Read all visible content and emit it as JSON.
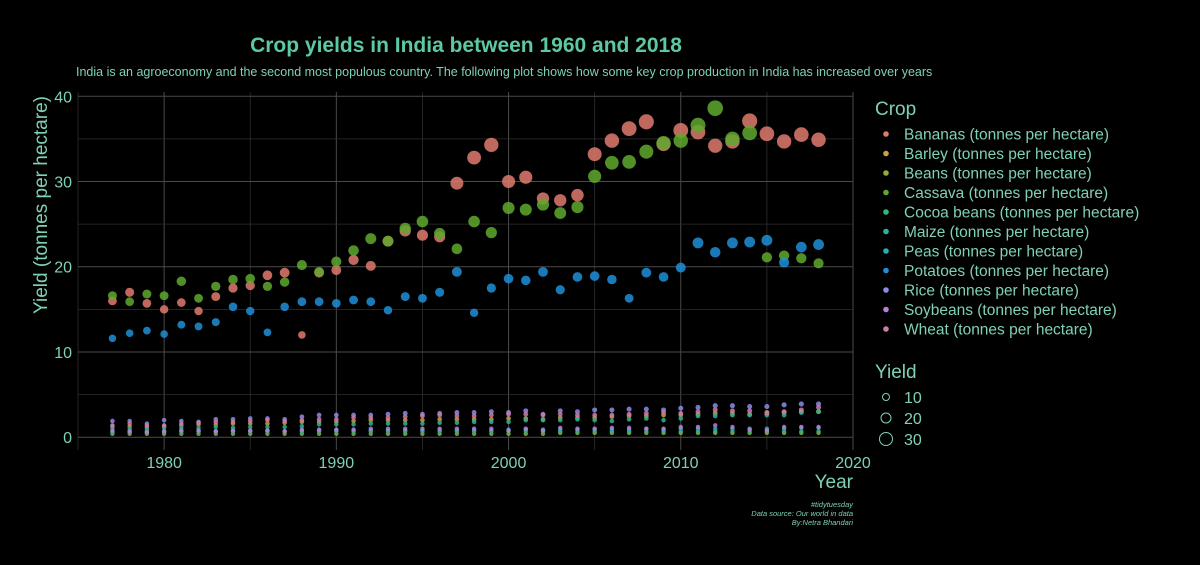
{
  "chart_data": {
    "type": "scatter",
    "title": "Crop yields in India between 1960 and 2018",
    "subtitle": "India is an agroeconomy and the second most populous country. The following plot shows how some key crop production in India has increased over years",
    "xlabel": "Year",
    "ylabel": "Yield (tonnes per hectare)",
    "xlim": [
      1975,
      2020
    ],
    "ylim": [
      -1.5,
      40.5
    ],
    "xticks": [
      1980,
      1990,
      2000,
      2010,
      2020
    ],
    "yticks": [
      0,
      10,
      20,
      30,
      40
    ],
    "grid": true,
    "legend": {
      "crop_title": "Crop",
      "size_title": "Yield",
      "size_values": [
        10,
        20,
        30
      ],
      "placement": "right"
    },
    "caption": [
      "#tidytuesday",
      "Data source: Our world in data",
      "By:Netra Bhandari"
    ],
    "series": [
      {
        "name": "Bananas (tonnes per hectare)",
        "color": "#E07A6E",
        "x": [
          1977,
          1978,
          1979,
          1980,
          1981,
          1982,
          1983,
          1984,
          1985,
          1986,
          1987,
          1988,
          1989,
          1990,
          1991,
          1992,
          1993,
          1994,
          1995,
          1996,
          1997,
          1998,
          1999,
          2000,
          2001,
          2002,
          2003,
          2004,
          2005,
          2006,
          2007,
          2008,
          2009,
          2010,
          2011,
          2012,
          2013,
          2014,
          2015,
          2016,
          2017,
          2018
        ],
        "y": [
          16.0,
          17.0,
          15.7,
          15.0,
          15.8,
          14.8,
          16.5,
          17.5,
          17.8,
          19.0,
          19.3,
          12.0,
          19.3,
          19.6,
          20.8,
          20.1,
          23.0,
          24.2,
          23.7,
          23.5,
          29.8,
          32.8,
          34.3,
          30.0,
          30.5,
          28.0,
          27.8,
          28.4,
          33.2,
          34.8,
          36.2,
          37.0,
          34.4,
          36.0,
          35.8,
          34.2,
          34.7,
          37.1,
          35.6,
          34.7,
          35.5,
          34.9
        ]
      },
      {
        "name": "Barley (tonnes per hectare)",
        "color": "#C8A23C",
        "x": [
          1977,
          1978,
          1979,
          1980,
          1981,
          1982,
          1983,
          1984,
          1985,
          1986,
          1987,
          1988,
          1989,
          1990,
          1991,
          1992,
          1993,
          1994,
          1995,
          1996,
          1997,
          1998,
          1999,
          2000,
          2001,
          2002,
          2003,
          2004,
          2005,
          2006,
          2007,
          2008,
          2009,
          2010,
          2011,
          2012,
          2013,
          2014,
          2015,
          2016,
          2017,
          2018
        ],
        "y": [
          1.3,
          1.3,
          1.2,
          1.3,
          1.4,
          1.5,
          1.5,
          1.6,
          1.6,
          1.6,
          1.7,
          1.8,
          1.8,
          1.8,
          1.9,
          2.0,
          2.0,
          2.0,
          2.0,
          2.1,
          2.1,
          2.1,
          2.1,
          2.2,
          2.2,
          2.1,
          2.3,
          2.3,
          2.3,
          2.4,
          2.5,
          2.5,
          2.6,
          2.6,
          2.7,
          2.8,
          2.8,
          2.7,
          2.9,
          2.9,
          3.0,
          3.0
        ]
      },
      {
        "name": "Beans (tonnes per hectare)",
        "color": "#9AA83A",
        "x": [
          1977,
          1978,
          1979,
          1980,
          1981,
          1982,
          1983,
          1984,
          1985,
          1986,
          1987,
          1988,
          1989,
          1990,
          1991,
          1992,
          1993,
          1994,
          1995,
          1996,
          1997,
          1998,
          1999,
          2000,
          2001,
          2002,
          2003,
          2004,
          2005,
          2006,
          2007,
          2008,
          2009,
          2010,
          2011,
          2012,
          2013,
          2014,
          2015,
          2016,
          2017,
          2018
        ],
        "y": [
          0.4,
          0.4,
          0.4,
          0.4,
          0.4,
          0.4,
          0.4,
          0.4,
          0.4,
          0.4,
          0.4,
          0.4,
          0.4,
          0.4,
          0.4,
          0.4,
          0.4,
          0.4,
          0.4,
          0.4,
          0.4,
          0.4,
          0.4,
          0.4,
          0.4,
          0.4,
          0.5,
          0.5,
          0.5,
          0.5,
          0.5,
          0.5,
          0.5,
          0.5,
          0.5,
          0.5,
          0.5,
          0.5,
          0.5,
          0.5,
          0.5,
          0.5
        ]
      },
      {
        "name": "Cassava (tonnes per hectare)",
        "color": "#5FA82E",
        "x": [
          1977,
          1978,
          1979,
          1980,
          1981,
          1982,
          1983,
          1984,
          1985,
          1986,
          1987,
          1988,
          1989,
          1990,
          1991,
          1992,
          1993,
          1994,
          1995,
          1996,
          1997,
          1998,
          1999,
          2000,
          2001,
          2002,
          2003,
          2004,
          2005,
          2006,
          2007,
          2008,
          2009,
          2010,
          2011,
          2012,
          2013,
          2014,
          2015,
          2016,
          2017,
          2018
        ],
        "y": [
          16.6,
          15.9,
          16.8,
          16.6,
          18.3,
          16.3,
          17.7,
          18.5,
          18.6,
          17.7,
          18.2,
          20.2,
          19.4,
          20.6,
          21.9,
          23.3,
          23.0,
          24.5,
          25.3,
          23.9,
          22.1,
          25.3,
          24.0,
          26.9,
          26.7,
          27.3,
          26.3,
          27.0,
          30.6,
          32.2,
          32.3,
          33.5,
          34.5,
          34.8,
          36.6,
          38.6,
          35.0,
          35.7,
          21.1,
          21.3,
          21.0,
          20.4
        ]
      },
      {
        "name": "Cocoa beans (tonnes per hectare)",
        "color": "#2EB87C",
        "x": [
          1977,
          1978,
          1979,
          1980,
          1981,
          1982,
          1983,
          1984,
          1985,
          1986,
          1987,
          1988,
          1989,
          1990,
          1991,
          1992,
          1993,
          1994,
          1995,
          1996,
          1997,
          1998,
          1999,
          2000,
          2001,
          2002,
          2003,
          2004,
          2005,
          2006,
          2007,
          2008,
          2009,
          2010,
          2011,
          2012,
          2013,
          2014,
          2015,
          2016,
          2017,
          2018
        ],
        "y": [
          0.7,
          0.7,
          0.7,
          0.7,
          0.7,
          0.7,
          0.7,
          0.7,
          0.7,
          0.7,
          0.7,
          0.7,
          0.7,
          0.7,
          0.7,
          0.7,
          0.7,
          0.7,
          0.7,
          0.7,
          0.7,
          0.7,
          0.7,
          0.7,
          0.7,
          0.7,
          0.7,
          0.7,
          0.7,
          0.7,
          0.7,
          0.7,
          0.7,
          0.7,
          0.7,
          0.7,
          0.7,
          0.7,
          0.7,
          0.7,
          0.7,
          0.7
        ]
      },
      {
        "name": "Maize (tonnes per hectare)",
        "color": "#2EB39A",
        "x": [
          1977,
          1978,
          1979,
          1980,
          1981,
          1982,
          1983,
          1984,
          1985,
          1986,
          1987,
          1988,
          1989,
          1990,
          1991,
          1992,
          1993,
          1994,
          1995,
          1996,
          1997,
          1998,
          1999,
          2000,
          2001,
          2002,
          2003,
          2004,
          2005,
          2006,
          2007,
          2008,
          2009,
          2010,
          2011,
          2012,
          2013,
          2014,
          2015,
          2016,
          2017,
          2018
        ],
        "y": [
          1.1,
          1.0,
          1.0,
          1.1,
          1.1,
          1.1,
          1.2,
          1.1,
          1.2,
          1.2,
          1.2,
          1.3,
          1.5,
          1.5,
          1.5,
          1.6,
          1.6,
          1.6,
          1.6,
          1.7,
          1.7,
          1.8,
          1.8,
          1.8,
          2.0,
          2.0,
          2.0,
          2.1,
          2.0,
          1.9,
          2.1,
          2.2,
          2.0,
          2.2,
          2.5,
          2.5,
          2.6,
          2.6,
          2.6,
          2.6,
          2.9,
          3.0
        ]
      },
      {
        "name": "Peas (tonnes per hectare)",
        "color": "#26AFB5",
        "x": [
          1977,
          1978,
          1979,
          1980,
          1981,
          1982,
          1983,
          1984,
          1985,
          1986,
          1987,
          1988,
          1989,
          1990,
          1991,
          1992,
          1993,
          1994,
          1995,
          1996,
          1997,
          1998,
          1999,
          2000,
          2001,
          2002,
          2003,
          2004,
          2005,
          2006,
          2007,
          2008,
          2009,
          2010,
          2011,
          2012,
          2013,
          2014,
          2015,
          2016,
          2017,
          2018
        ],
        "y": [
          0.6,
          0.6,
          0.6,
          0.6,
          0.7,
          0.7,
          0.7,
          0.7,
          0.7,
          0.8,
          0.7,
          0.7,
          0.8,
          0.8,
          0.8,
          0.8,
          0.8,
          0.8,
          0.8,
          0.8,
          0.8,
          0.8,
          0.8,
          0.9,
          0.9,
          0.9,
          0.9,
          0.9,
          0.9,
          0.9,
          0.9,
          1.0,
          0.9,
          1.0,
          1.0,
          1.0,
          1.0,
          1.0,
          1.0,
          1.0,
          1.1,
          1.1
        ]
      },
      {
        "name": "Potatoes (tonnes per hectare)",
        "color": "#1E8FD8",
        "x": [
          1977,
          1978,
          1979,
          1980,
          1981,
          1982,
          1983,
          1984,
          1985,
          1986,
          1987,
          1988,
          1989,
          1990,
          1991,
          1992,
          1993,
          1994,
          1995,
          1996,
          1997,
          1998,
          1999,
          2000,
          2001,
          2002,
          2003,
          2004,
          2005,
          2006,
          2007,
          2008,
          2009,
          2010,
          2011,
          2012,
          2013,
          2014,
          2015,
          2016,
          2017,
          2018
        ],
        "y": [
          11.6,
          12.2,
          12.5,
          12.1,
          13.2,
          13.0,
          13.5,
          15.3,
          14.8,
          12.3,
          15.3,
          15.9,
          15.9,
          15.7,
          16.1,
          15.9,
          14.9,
          16.5,
          16.3,
          17.0,
          19.4,
          14.6,
          17.5,
          18.6,
          18.4,
          19.4,
          17.3,
          18.8,
          18.9,
          18.5,
          16.3,
          19.3,
          18.8,
          19.9,
          22.8,
          21.7,
          22.8,
          22.9,
          23.1,
          20.5,
          22.3,
          22.6
        ]
      },
      {
        "name": "Rice (tonnes per hectare)",
        "color": "#8C8CE8",
        "x": [
          1977,
          1978,
          1979,
          1980,
          1981,
          1982,
          1983,
          1984,
          1985,
          1986,
          1987,
          1988,
          1989,
          1990,
          1991,
          1992,
          1993,
          1994,
          1995,
          1996,
          1997,
          1998,
          1999,
          2000,
          2001,
          2002,
          2003,
          2004,
          2005,
          2006,
          2007,
          2008,
          2009,
          2010,
          2011,
          2012,
          2013,
          2014,
          2015,
          2016,
          2017,
          2018
        ],
        "y": [
          1.9,
          1.9,
          1.6,
          2.0,
          1.9,
          1.8,
          2.1,
          2.1,
          2.2,
          2.2,
          2.1,
          2.4,
          2.6,
          2.6,
          2.6,
          2.6,
          2.7,
          2.8,
          2.7,
          2.8,
          2.9,
          2.9,
          3.0,
          2.9,
          3.1,
          2.7,
          3.1,
          3.0,
          3.2,
          3.2,
          3.3,
          3.3,
          3.2,
          3.4,
          3.5,
          3.7,
          3.7,
          3.6,
          3.6,
          3.8,
          3.9,
          3.9
        ]
      },
      {
        "name": "Soybeans (tonnes per hectare)",
        "color": "#B77FD6",
        "x": [
          1977,
          1978,
          1979,
          1980,
          1981,
          1982,
          1983,
          1984,
          1985,
          1986,
          1987,
          1988,
          1989,
          1990,
          1991,
          1992,
          1993,
          1994,
          1995,
          1996,
          1997,
          1998,
          1999,
          2000,
          2001,
          2002,
          2003,
          2004,
          2005,
          2006,
          2007,
          2008,
          2009,
          2010,
          2011,
          2012,
          2013,
          2014,
          2015,
          2016,
          2017,
          2018
        ],
        "y": [
          0.8,
          0.7,
          0.6,
          0.7,
          0.8,
          0.8,
          0.7,
          0.8,
          0.8,
          0.8,
          0.7,
          0.9,
          0.9,
          0.9,
          0.9,
          1.0,
          1.0,
          1.0,
          1.0,
          1.0,
          1.0,
          1.0,
          1.0,
          0.8,
          1.0,
          0.8,
          1.1,
          1.0,
          1.0,
          1.1,
          1.1,
          1.0,
          1.0,
          1.2,
          1.2,
          1.4,
          1.2,
          0.9,
          0.8,
          1.2,
          1.2,
          1.2
        ]
      },
      {
        "name": "Wheat (tonnes per hectare)",
        "color": "#D07AA8",
        "x": [
          1977,
          1978,
          1979,
          1980,
          1981,
          1982,
          1983,
          1984,
          1985,
          1986,
          1987,
          1988,
          1989,
          1990,
          1991,
          1992,
          1993,
          1994,
          1995,
          1996,
          1997,
          1998,
          1999,
          2000,
          2001,
          2002,
          2003,
          2004,
          2005,
          2006,
          2007,
          2008,
          2009,
          2010,
          2011,
          2012,
          2013,
          2014,
          2015,
          2016,
          2017,
          2018
        ],
        "y": [
          1.4,
          1.6,
          1.4,
          1.4,
          1.6,
          1.7,
          1.8,
          1.8,
          1.9,
          2.0,
          1.9,
          2.0,
          2.1,
          2.1,
          2.3,
          2.3,
          2.3,
          2.4,
          2.5,
          2.6,
          2.5,
          2.5,
          2.6,
          2.7,
          2.7,
          2.6,
          2.7,
          2.6,
          2.6,
          2.6,
          2.7,
          2.8,
          2.9,
          2.8,
          3.0,
          3.2,
          3.1,
          3.1,
          2.8,
          3.0,
          3.2,
          3.5
        ]
      }
    ]
  }
}
